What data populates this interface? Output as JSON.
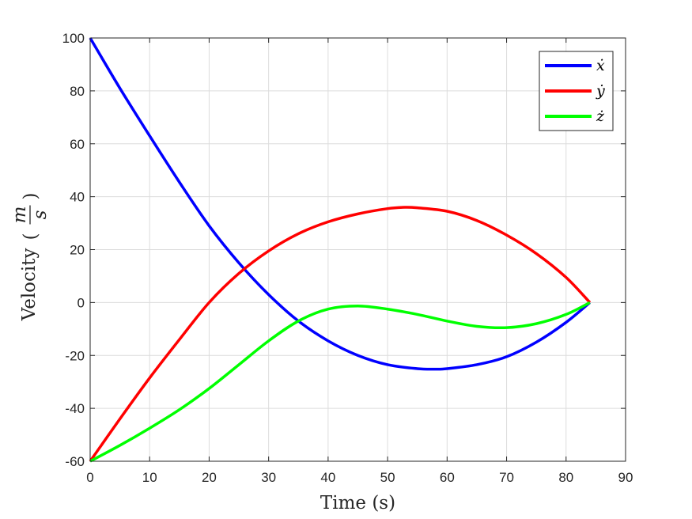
{
  "chart_data": {
    "type": "line",
    "xlabel": "Time (s)",
    "ylabel": "Velocity",
    "ylabel_unit_num": "m",
    "ylabel_unit_den": "s",
    "xlim": [
      0,
      90
    ],
    "ylim": [
      -60,
      100
    ],
    "xticks": [
      0,
      10,
      20,
      30,
      40,
      50,
      60,
      70,
      80,
      90
    ],
    "yticks": [
      -60,
      -40,
      -20,
      0,
      20,
      40,
      60,
      80,
      100
    ],
    "grid": true,
    "legend_position": "top-right",
    "series": [
      {
        "name": "ẋ",
        "color": "#0000ff",
        "x": [
          0,
          5,
          10,
          15,
          20,
          25,
          30,
          35,
          40,
          45,
          50,
          55,
          58,
          60,
          65,
          70,
          75,
          80,
          84
        ],
        "y": [
          100,
          81,
          63,
          45.5,
          29,
          15,
          3,
          -7,
          -14.5,
          -20,
          -23.5,
          -25,
          -25.2,
          -25,
          -23.5,
          -20.5,
          -15,
          -7.5,
          0
        ]
      },
      {
        "name": "ẏ",
        "color": "#ff0000",
        "x": [
          0,
          5,
          10,
          15,
          20,
          25,
          30,
          35,
          40,
          45,
          50,
          53,
          55,
          60,
          65,
          70,
          75,
          80,
          84
        ],
        "y": [
          -60,
          -44,
          -28.5,
          -14,
          0,
          11,
          19.5,
          26,
          30.5,
          33.5,
          35.5,
          36,
          35.8,
          34.5,
          31,
          25.5,
          18.5,
          9.5,
          0
        ]
      },
      {
        "name": "ż",
        "color": "#00ff00",
        "x": [
          0,
          5,
          10,
          15,
          20,
          25,
          30,
          35,
          40,
          45,
          50,
          55,
          60,
          65,
          70,
          75,
          80,
          84
        ],
        "y": [
          -60,
          -54,
          -47.5,
          -40.5,
          -32.5,
          -23.5,
          -14.5,
          -7,
          -2.5,
          -1.3,
          -2.5,
          -4.5,
          -7,
          -9,
          -9.5,
          -8,
          -4.5,
          0
        ]
      }
    ]
  }
}
